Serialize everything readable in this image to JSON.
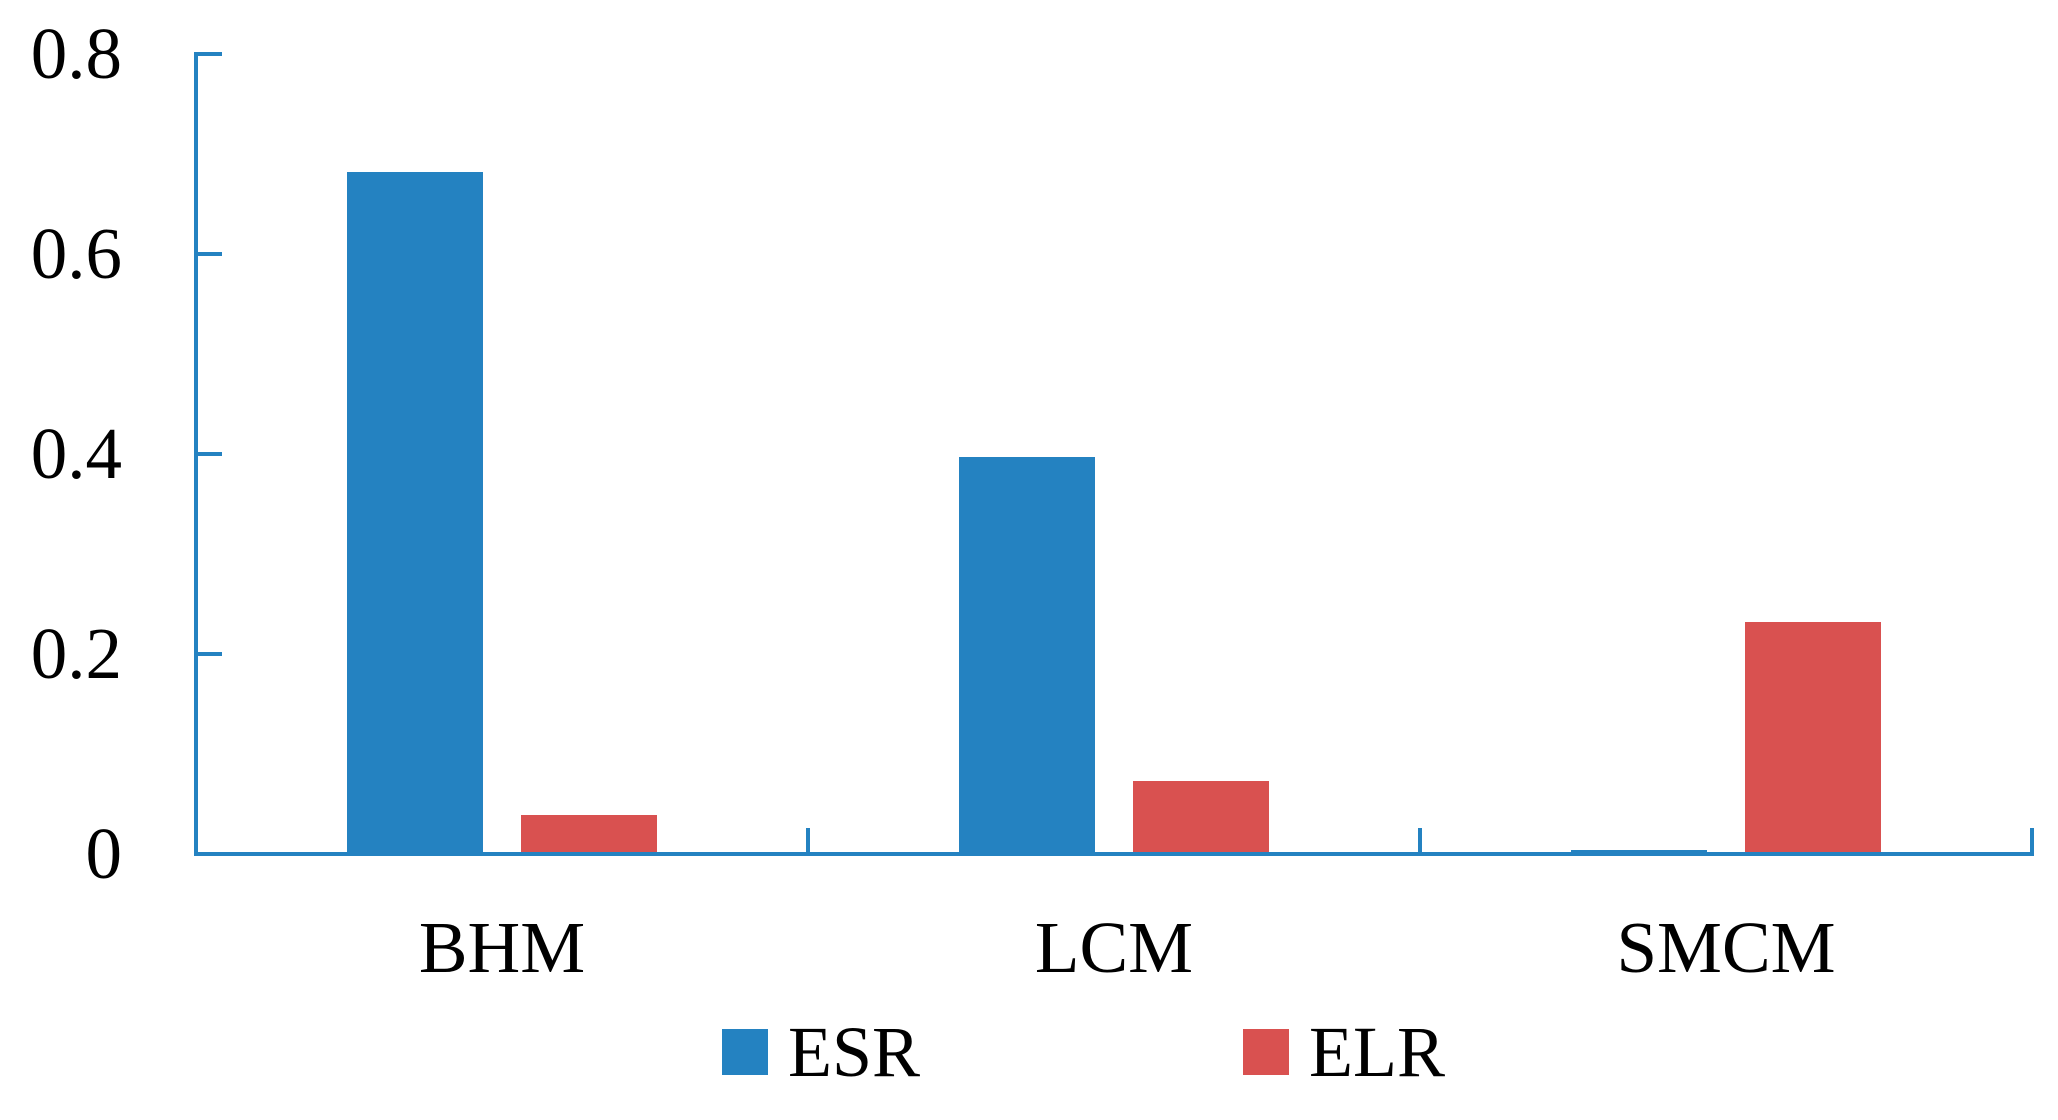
{
  "chart_data": {
    "type": "bar",
    "categories": [
      "BHM",
      "LCM",
      "SMCM"
    ],
    "series": [
      {
        "name": "ESR",
        "color": "#2482C1",
        "values": [
          0.682,
          0.397,
          0.004
        ]
      },
      {
        "name": "ELR",
        "color": "#D95150",
        "values": [
          0.039,
          0.073,
          0.232
        ]
      }
    ],
    "title": "",
    "xlabel": "",
    "ylabel": "",
    "ylim": [
      0,
      0.8
    ],
    "y_ticks": [
      0,
      0.2,
      0.4,
      0.6,
      0.8
    ],
    "y_tick_labels": [
      "0",
      "0.2",
      "0.4",
      "0.6",
      "0.8"
    ],
    "grid": false,
    "legend_position": "bottom-center",
    "axis_color": "#2482C1",
    "text_color": "#000000",
    "background": "#FFFFFF"
  }
}
